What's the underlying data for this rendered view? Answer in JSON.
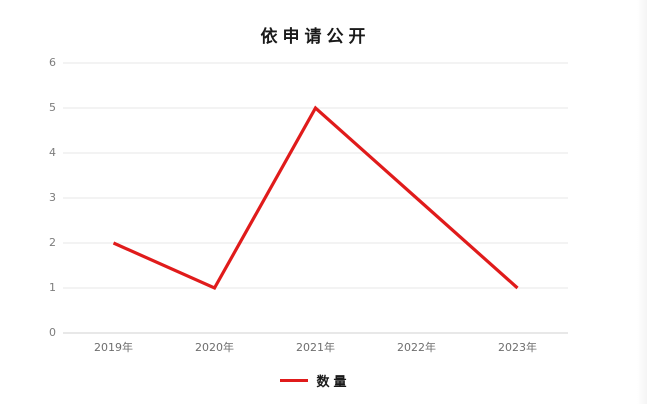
{
  "chart_data": {
    "type": "line",
    "title": "依申请公开",
    "categories": [
      "2019年",
      "2020年",
      "2021年",
      "2022年",
      "2023年"
    ],
    "series": [
      {
        "name": "数量",
        "values": [
          2,
          1,
          5,
          3,
          1
        ],
        "color": "#e01b1b"
      }
    ],
    "xlabel": "",
    "ylabel": "",
    "ylim": [
      0,
      6
    ],
    "y_ticks": [
      0,
      1,
      2,
      3,
      4,
      5,
      6
    ],
    "grid": "horizontal",
    "legend_position": "bottom"
  },
  "colors": {
    "gridline": "#e7e7e7",
    "baseline": "#d2d2d2",
    "tick_label": "#7c7c7c",
    "title_text": "#1a1a1a",
    "series_line": "#e01b1b",
    "background": "#ffffff"
  }
}
